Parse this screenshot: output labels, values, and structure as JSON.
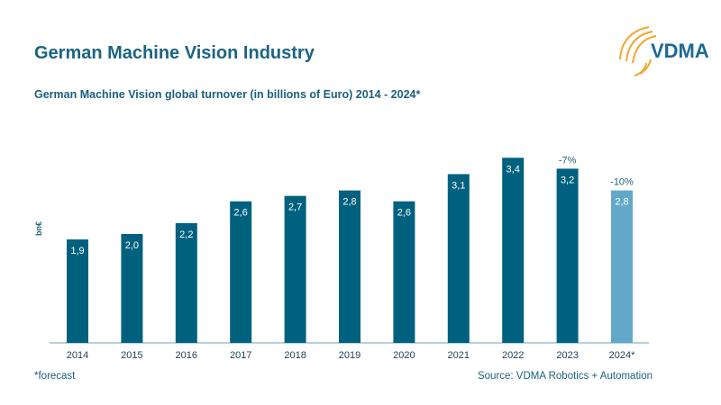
{
  "header": {
    "title": "German Machine Vision Industry",
    "logo_text": "VDMA"
  },
  "chart_data": {
    "type": "bar",
    "title": "German Machine Vision global turnover (in billions of Euro) 2014 - 2024*",
    "ylabel": "bn€",
    "categories": [
      "2014",
      "2015",
      "2016",
      "2017",
      "2018",
      "2019",
      "2020",
      "2021",
      "2022",
      "2023",
      "2024*"
    ],
    "values": [
      1.9,
      2.0,
      2.2,
      2.6,
      2.7,
      2.8,
      2.6,
      3.1,
      3.4,
      3.2,
      2.8
    ],
    "data_labels": [
      "1,9",
      "2,0",
      "2,2",
      "2,6",
      "2,7",
      "2,8",
      "2,6",
      "3,1",
      "3,4",
      "3,2",
      "2,8"
    ],
    "annotations": [
      {
        "category": "2023",
        "text": "-7%"
      },
      {
        "category": "2024*",
        "text": "-10%"
      }
    ],
    "forecast_categories": [
      "2024*"
    ],
    "ylim": [
      0,
      3.6
    ],
    "grid": false,
    "colors": {
      "bar": "#00617f",
      "forecast": "#62a9c9",
      "label": "#1b5f7c"
    }
  },
  "footer": {
    "note": "*forecast",
    "source": "Source: VDMA Robotics + Automation"
  }
}
